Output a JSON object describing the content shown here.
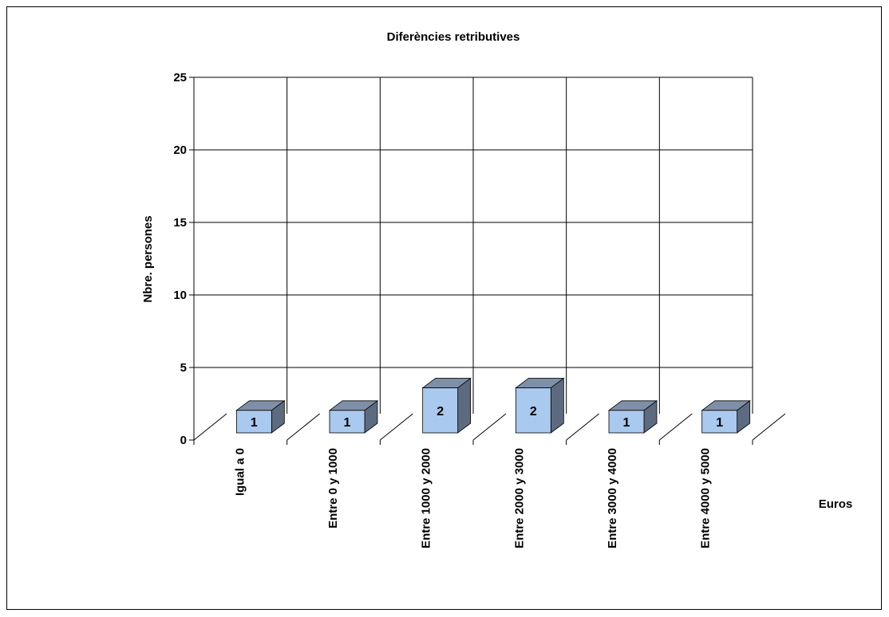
{
  "chart_data": {
    "type": "bar",
    "title": "Diferències retributives",
    "xlabel": "Euros",
    "ylabel": "Nbre. persones",
    "categories": [
      "Igual a 0",
      "Entre 0 y 1000",
      "Entre 1000 y 2000",
      "Entre 2000 y 3000",
      "Entre 3000 y 4000",
      "Entre 4000 y 5000"
    ],
    "values": [
      1,
      1,
      2,
      2,
      1,
      1
    ],
    "ylim": [
      0,
      25
    ],
    "yticks": [
      0,
      5,
      10,
      15,
      20,
      25
    ],
    "grid": true,
    "legend": "none",
    "colors": {
      "bar_front": "#a9c9ee",
      "bar_top": "#7f8fa8",
      "bar_side": "#5c6b80",
      "grid": "#000000"
    }
  }
}
